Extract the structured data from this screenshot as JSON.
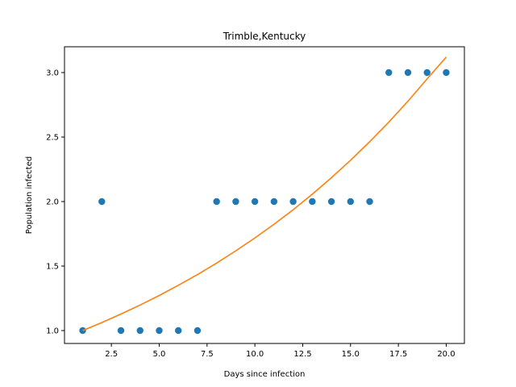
{
  "chart_data": {
    "type": "scatter",
    "title": "Trimble,Kentucky",
    "xlabel": "Days since infection",
    "ylabel": "Population infected",
    "xlim": [
      0.05,
      20.95
    ],
    "ylim": [
      0.9,
      3.2
    ],
    "grid": false,
    "xticks": [
      2.5,
      5.0,
      7.5,
      10.0,
      12.5,
      15.0,
      17.5,
      20.0
    ],
    "xtick_labels": [
      "2.5",
      "5.0",
      "7.5",
      "10.0",
      "12.5",
      "15.0",
      "17.5",
      "20.0"
    ],
    "yticks": [
      1.0,
      1.5,
      2.0,
      2.5,
      3.0
    ],
    "ytick_labels": [
      "1.0",
      "1.5",
      "2.0",
      "2.5",
      "3.0"
    ],
    "series": [
      {
        "kind": "scatter",
        "color": "#1f77b4",
        "x": [
          1,
          2,
          3,
          4,
          5,
          6,
          7,
          8,
          9,
          10,
          11,
          12,
          13,
          14,
          15,
          16,
          17,
          18,
          19,
          20
        ],
        "y": [
          1,
          2,
          1,
          1,
          1,
          1,
          1,
          2,
          2,
          2,
          2,
          2,
          2,
          2,
          2,
          2,
          3,
          3,
          3,
          3
        ]
      },
      {
        "kind": "line",
        "color": "#ff7f0e",
        "x": [
          1,
          2,
          3,
          4,
          5,
          6,
          7,
          8,
          9,
          10,
          11,
          12,
          13,
          14,
          15,
          16,
          17,
          18,
          19,
          20
        ],
        "y": [
          1.0,
          1.062,
          1.128,
          1.198,
          1.272,
          1.351,
          1.434,
          1.523,
          1.618,
          1.718,
          1.824,
          1.937,
          2.057,
          2.185,
          2.32,
          2.464,
          2.616,
          2.778,
          2.951,
          3.12
        ]
      }
    ]
  }
}
